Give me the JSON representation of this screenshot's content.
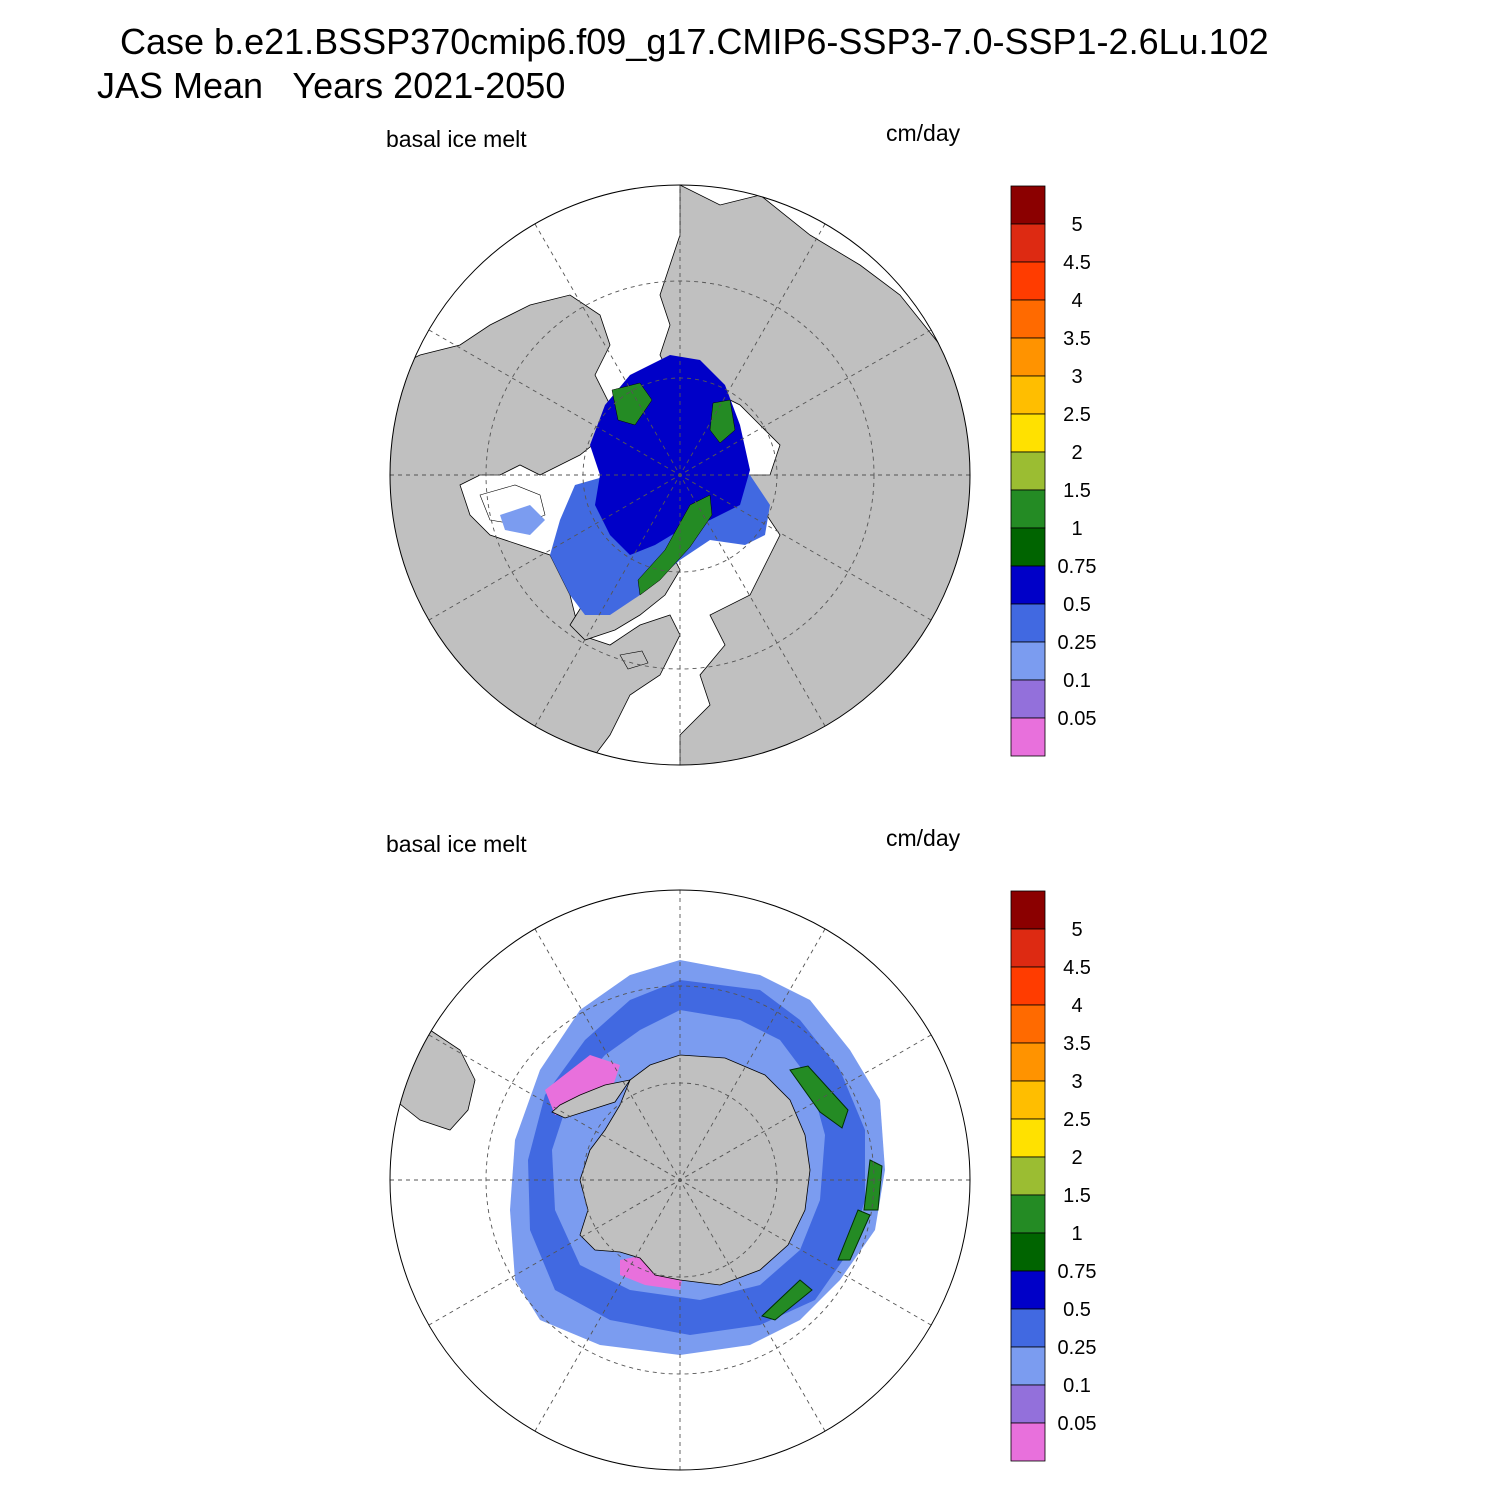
{
  "title_line1": "Case b.e21.BSSP370cmip6.f09_g17.CMIP6-SSP3-7.0-SSP1-2.6Lu.102",
  "title_line2": "JAS Mean   Years 2021-2050",
  "panels": [
    {
      "variable": "basal ice melt",
      "units": "cm/day",
      "hemisphere": "north"
    },
    {
      "variable": "basal ice melt",
      "units": "cm/day",
      "hemisphere": "south"
    }
  ],
  "colorbar": {
    "labels": [
      "5",
      "4.5",
      "4",
      "3.5",
      "3",
      "2.5",
      "2",
      "1.5",
      "1",
      "0.75",
      "0.5",
      "0.25",
      "0.1",
      "0.05"
    ],
    "colors_top_to_bottom": [
      "#8b0000",
      "#dd2a12",
      "#ff3c00",
      "#ff6a00",
      "#ff9300",
      "#ffbe00",
      "#ffe100",
      "#9bbd32",
      "#248b24",
      "#006400",
      "#0000c8",
      "#4169e1",
      "#7b9cf0",
      "#9370db",
      "#e870dc"
    ]
  },
  "colors": {
    "land": "#c0c0c0",
    "ocean": "#ffffff",
    "grid": "#555555"
  }
}
